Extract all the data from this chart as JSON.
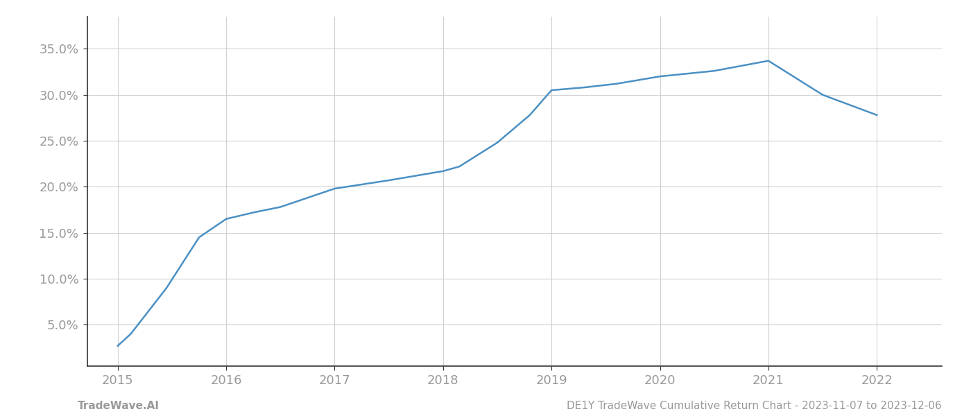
{
  "x_years": [
    2015.0,
    2015.12,
    2015.45,
    2015.75,
    2016.0,
    2016.25,
    2016.5,
    2017.0,
    2017.5,
    2018.0,
    2018.15,
    2018.5,
    2018.8,
    2019.0,
    2019.3,
    2019.6,
    2020.0,
    2020.5,
    2021.0,
    2021.5,
    2022.0
  ],
  "y_values": [
    0.027,
    0.04,
    0.09,
    0.145,
    0.165,
    0.172,
    0.178,
    0.198,
    0.207,
    0.217,
    0.222,
    0.248,
    0.278,
    0.305,
    0.308,
    0.312,
    0.32,
    0.326,
    0.337,
    0.3,
    0.278
  ],
  "line_color": "#4a90c4",
  "line_width": 1.8,
  "background_color": "#ffffff",
  "grid_color": "#d0d0d0",
  "yticks": [
    0.05,
    0.1,
    0.15,
    0.2,
    0.25,
    0.3,
    0.35
  ],
  "xticks": [
    2015,
    2016,
    2017,
    2018,
    2019,
    2020,
    2021,
    2022
  ],
  "xlim": [
    2014.72,
    2022.6
  ],
  "ylim": [
    0.005,
    0.385
  ],
  "footer_left": "TradeWave.AI",
  "footer_right": "DE1Y TradeWave Cumulative Return Chart - 2023-11-07 to 2023-12-06",
  "tick_label_color": "#999999",
  "spine_color": "#333333",
  "footer_color": "#999999",
  "footer_fontsize": 11,
  "tick_fontsize": 13
}
